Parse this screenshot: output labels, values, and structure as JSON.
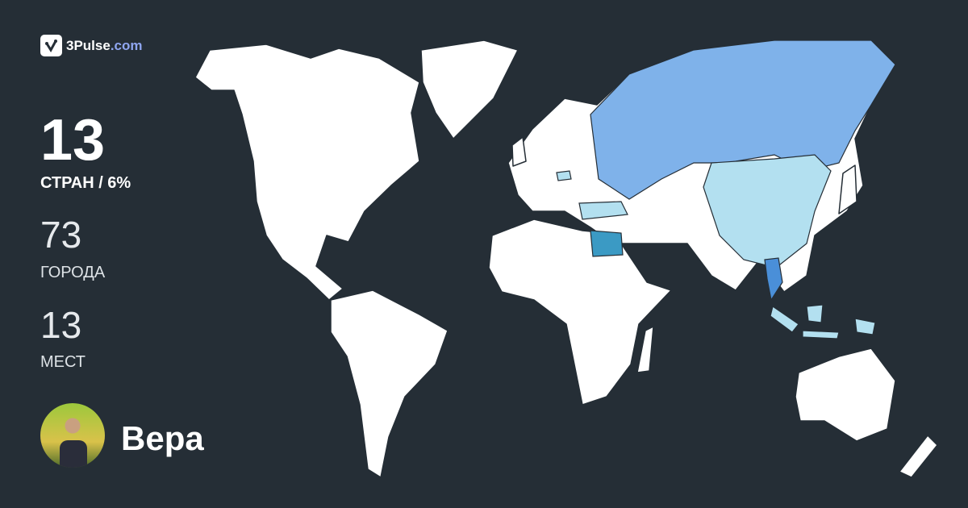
{
  "brand": {
    "name": "3Pulse",
    "domain": ".com",
    "icon": "pulse-check-icon",
    "accent": "#8fa6f0"
  },
  "stats": {
    "countries": {
      "value": "13",
      "label": "СТРАН / 6%"
    },
    "cities": {
      "value": "73",
      "label": "ГОРОДА"
    },
    "places": {
      "value": "13",
      "label": "МЕСТ"
    }
  },
  "user": {
    "name": "Вера"
  },
  "map": {
    "background": "#252e36",
    "land": "#ffffff",
    "visited_colors": {
      "Russia": "#7fb2ea",
      "China": "#b3e0f0",
      "Egypt": "#3b9ac4",
      "Thailand": "#4a8fd8",
      "Indonesia": "#b3e0f0",
      "Turkey": "#b3e0f0"
    }
  }
}
